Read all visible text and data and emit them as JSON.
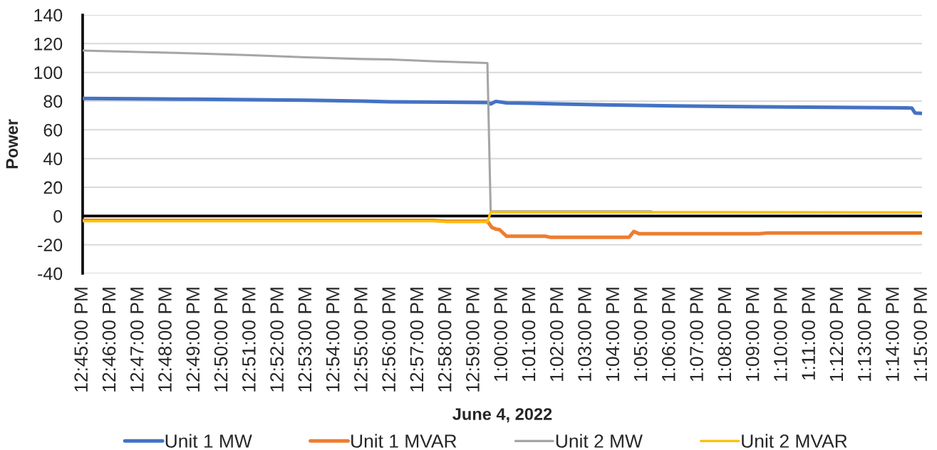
{
  "chart_data": {
    "type": "line",
    "xlabel": "June 4, 2022",
    "ylabel": "Power",
    "xlim": [
      12.75,
      13.25
    ],
    "xticks": [
      {
        "value": 12.75,
        "label": "12:45:00 PM"
      },
      {
        "value": 12.76667,
        "label": "12:46:00 PM"
      },
      {
        "value": 12.78333,
        "label": "12:47:00 PM"
      },
      {
        "value": 12.8,
        "label": "12:48:00 PM"
      },
      {
        "value": 12.81667,
        "label": "12:49:00 PM"
      },
      {
        "value": 12.83333,
        "label": "12:50:00 PM"
      },
      {
        "value": 12.85,
        "label": "12:51:00 PM"
      },
      {
        "value": 12.86667,
        "label": "12:52:00 PM"
      },
      {
        "value": 12.88333,
        "label": "12:53:00 PM"
      },
      {
        "value": 12.9,
        "label": "12:54:00 PM"
      },
      {
        "value": 12.91667,
        "label": "12:55:00 PM"
      },
      {
        "value": 12.93333,
        "label": "12:56:00 PM"
      },
      {
        "value": 12.95,
        "label": "12:57:00 PM"
      },
      {
        "value": 12.96667,
        "label": "12:58:00 PM"
      },
      {
        "value": 12.98333,
        "label": "12:59:00 PM"
      },
      {
        "value": 13.0,
        "label": "1:00:00 PM"
      },
      {
        "value": 13.01667,
        "label": "1:01:00 PM"
      },
      {
        "value": 13.03333,
        "label": "1:02:00 PM"
      },
      {
        "value": 13.05,
        "label": "1:03:00 PM"
      },
      {
        "value": 13.06667,
        "label": "1:04:00 PM"
      },
      {
        "value": 13.08333,
        "label": "1:05:00 PM"
      },
      {
        "value": 13.1,
        "label": "1:06:00 PM"
      },
      {
        "value": 13.11667,
        "label": "1:07:00 PM"
      },
      {
        "value": 13.13333,
        "label": "1:08:00 PM"
      },
      {
        "value": 13.15,
        "label": "1:09:00 PM"
      },
      {
        "value": 13.16667,
        "label": "1:10:00 PM"
      },
      {
        "value": 13.18333,
        "label": "1:11:00 PM"
      },
      {
        "value": 13.2,
        "label": "1:12:00 PM"
      },
      {
        "value": 13.21667,
        "label": "1:13:00 PM"
      },
      {
        "value": 13.23333,
        "label": "1:14:00 PM"
      },
      {
        "value": 13.25,
        "label": "1:15:00 PM"
      }
    ],
    "ylim": [
      -40,
      140
    ],
    "yticks": [
      -40,
      -20,
      0,
      20,
      40,
      60,
      80,
      100,
      120,
      140
    ],
    "grid": "y",
    "legend": "bottom",
    "line_style": "solid",
    "ref_lines": [
      {
        "axis": "y",
        "value": 0,
        "color": "#000000"
      }
    ],
    "series": [
      {
        "name": "Unit 1 MW",
        "color": "#4472c4",
        "x": [
          12.75,
          12.78333,
          12.81667,
          12.85,
          12.88333,
          12.91667,
          12.93333,
          12.96667,
          12.99111,
          12.99306,
          12.99611,
          13.0025,
          13.01667,
          13.03333,
          13.06056,
          13.10278,
          13.16667,
          13.24389,
          13.24583,
          13.25
        ],
        "values": [
          81.8,
          81.6,
          81.3,
          81,
          80.6,
          80,
          79.5,
          79.3,
          79,
          78,
          79.8,
          78.8,
          78.5,
          78,
          77.4,
          76.6,
          75.9,
          75.2,
          71.7,
          71.5
        ]
      },
      {
        "name": "Unit 1 MVAR",
        "color": "#ed7d31",
        "x": [
          12.75,
          12.95833,
          12.96667,
          12.99111,
          12.99389,
          12.99611,
          12.99833,
          13.0025,
          13.02556,
          13.02833,
          13.07556,
          13.07833,
          13.08167,
          13.15278,
          13.15833,
          13.25
        ],
        "values": [
          -3,
          -3,
          -3.7,
          -3.7,
          -8.1,
          -9.1,
          -9.5,
          -14.1,
          -14.1,
          -14.8,
          -14.8,
          -10.8,
          -12.4,
          -12.4,
          -11.8,
          -11.8
        ]
      },
      {
        "name": "Unit 2 MW",
        "color": "#a5a5a5",
        "x": [
          12.75,
          12.78333,
          12.81667,
          12.85,
          12.88333,
          12.91667,
          12.93333,
          12.95833,
          12.99111,
          12.99306,
          13.08889
        ],
        "values": [
          115.2,
          114.2,
          113.2,
          112,
          110.5,
          109.3,
          109,
          107.8,
          106.5,
          3.2,
          3.2
        ]
      },
      {
        "name": "Unit 2 MVAR",
        "color": "#ffc000",
        "x": [
          12.75,
          12.95833,
          12.96667,
          12.99111,
          12.99306,
          13.25
        ],
        "values": [
          -3.5,
          -3.5,
          -4.1,
          -4.1,
          2.7,
          2.5
        ]
      }
    ]
  }
}
